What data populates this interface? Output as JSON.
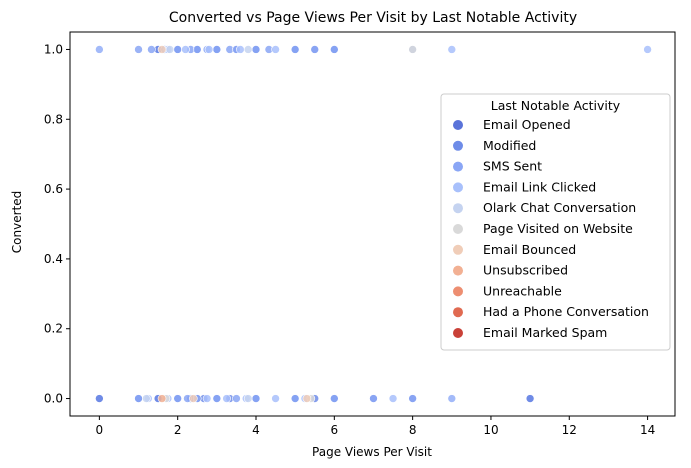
{
  "chart_data": {
    "type": "scatter",
    "title": "Converted vs Page Views Per Visit by Last Notable Activity",
    "xlabel": "Page Views Per Visit",
    "ylabel": "Converted",
    "xlim": [
      -0.75,
      14.7
    ],
    "ylim": [
      -0.05,
      1.05
    ],
    "x_ticks": [
      0,
      2,
      4,
      6,
      8,
      10,
      12,
      14
    ],
    "y_ticks": [
      0.0,
      0.2,
      0.4,
      0.6,
      0.8,
      1.0
    ],
    "x_tick_labels": [
      "0",
      "2",
      "4",
      "6",
      "8",
      "10",
      "12",
      "14"
    ],
    "y_tick_labels": [
      "0.0",
      "0.2",
      "0.4",
      "0.6",
      "0.8",
      "1.0"
    ],
    "grid": false,
    "legend": {
      "title": "Last Notable Activity",
      "placement": "center-right"
    },
    "series": [
      {
        "name": "Email Opened",
        "color": "#5a73d9",
        "points": [
          [
            1.5,
            1
          ],
          [
            2,
            1
          ],
          [
            2.5,
            1
          ],
          [
            3,
            1
          ],
          [
            4,
            1
          ],
          [
            5,
            1
          ],
          [
            6,
            1
          ],
          [
            0,
            0
          ],
          [
            1,
            0
          ],
          [
            1.5,
            0
          ],
          [
            2,
            0
          ],
          [
            2.5,
            0
          ],
          [
            3,
            0
          ],
          [
            4,
            0
          ],
          [
            5,
            0
          ],
          [
            6,
            0
          ],
          [
            11,
            0
          ]
        ]
      },
      {
        "name": "Modified",
        "color": "#6e8ce8",
        "points": [
          [
            0,
            1
          ],
          [
            1.5,
            1
          ],
          [
            2,
            1
          ],
          [
            2.5,
            1
          ],
          [
            3,
            1
          ],
          [
            3.5,
            1
          ],
          [
            4,
            1
          ],
          [
            5,
            1
          ],
          [
            5.5,
            1
          ],
          [
            6,
            1
          ],
          [
            0,
            0
          ],
          [
            1,
            0
          ],
          [
            1.5,
            0
          ],
          [
            2,
            0
          ],
          [
            2.33,
            0
          ],
          [
            2.67,
            0
          ],
          [
            3,
            0
          ],
          [
            3.33,
            0
          ],
          [
            4,
            0
          ],
          [
            5,
            0
          ],
          [
            5.5,
            0
          ],
          [
            6,
            0
          ],
          [
            7,
            0
          ],
          [
            8,
            0
          ],
          [
            9,
            0
          ],
          [
            11,
            0
          ]
        ]
      },
      {
        "name": "SMS Sent",
        "color": "#8aa6f5",
        "points": [
          [
            1,
            1
          ],
          [
            1.33,
            1
          ],
          [
            1.67,
            1
          ],
          [
            2,
            1
          ],
          [
            2.33,
            1
          ],
          [
            2.5,
            1
          ],
          [
            2.75,
            1
          ],
          [
            3,
            1
          ],
          [
            3.33,
            1
          ],
          [
            3.5,
            1
          ],
          [
            4,
            1
          ],
          [
            4.33,
            1
          ],
          [
            5,
            1
          ],
          [
            5.5,
            1
          ],
          [
            6,
            1
          ],
          [
            8,
            1
          ],
          [
            1,
            0
          ],
          [
            2,
            0
          ],
          [
            2.25,
            0
          ],
          [
            2.5,
            0
          ],
          [
            3,
            0
          ],
          [
            3.5,
            0
          ],
          [
            4,
            0
          ],
          [
            5,
            0
          ],
          [
            6,
            0
          ],
          [
            7,
            0
          ],
          [
            8,
            0
          ]
        ]
      },
      {
        "name": "Email Link Clicked",
        "color": "#a8c0fb",
        "points": [
          [
            0,
            1
          ],
          [
            1.75,
            1
          ],
          [
            2.2,
            1
          ],
          [
            2.8,
            1
          ],
          [
            3.6,
            1
          ],
          [
            4.5,
            1
          ],
          [
            9,
            1
          ],
          [
            14,
            1
          ],
          [
            1.25,
            0
          ],
          [
            1.75,
            0
          ],
          [
            2.75,
            0
          ],
          [
            3.25,
            0
          ],
          [
            3.75,
            0
          ],
          [
            4.5,
            0
          ],
          [
            5.25,
            0
          ],
          [
            7.5,
            0
          ],
          [
            9,
            0
          ]
        ]
      },
      {
        "name": "Olark Chat Conversation",
        "color": "#c5d3f0",
        "points": [
          [
            1.8,
            1
          ],
          [
            3.8,
            1
          ],
          [
            1.2,
            0
          ],
          [
            3.8,
            0
          ]
        ]
      },
      {
        "name": "Page Visited on Website",
        "color": "#d9d9d9",
        "points": [
          [
            8,
            1
          ],
          [
            1.7,
            0
          ],
          [
            5.4,
            0
          ]
        ]
      },
      {
        "name": "Email Bounced",
        "color": "#f0cdb8",
        "points": [
          [
            1.6,
            1
          ],
          [
            2.4,
            0
          ],
          [
            5.3,
            0
          ]
        ]
      },
      {
        "name": "Unsubscribed",
        "color": "#f2b093",
        "points": [
          [
            1.6,
            0
          ]
        ]
      },
      {
        "name": "Unreachable",
        "color": "#ed8e71",
        "points": []
      },
      {
        "name": "Had a Phone Conversation",
        "color": "#e06a51",
        "points": []
      },
      {
        "name": "Email Marked Spam",
        "color": "#c94138",
        "points": []
      }
    ]
  }
}
